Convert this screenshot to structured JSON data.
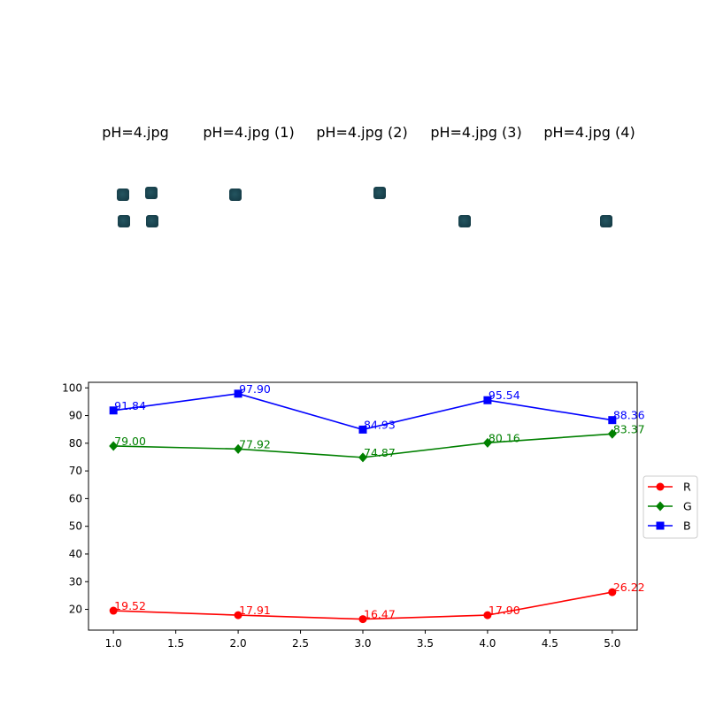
{
  "panels": [
    {
      "title": "pH=4.jpg",
      "spots": [
        [
          139,
          220
        ],
        [
          171,
          218
        ],
        [
          140,
          250
        ],
        [
          172,
          250
        ]
      ]
    },
    {
      "title": "pH=4.jpg (1)",
      "spots": [
        [
          266,
          220
        ]
      ]
    },
    {
      "title": "pH=4.jpg (2)",
      "spots": [
        [
          429,
          218
        ]
      ]
    },
    {
      "title": "pH=4.jpg (3)",
      "spots": [
        [
          525,
          250
        ]
      ]
    },
    {
      "title": "pH=4.jpg (4)",
      "spots": [
        [
          685,
          250
        ]
      ]
    }
  ],
  "chart_data": {
    "type": "line",
    "title": "",
    "xlabel": "",
    "ylabel": "",
    "x": [
      1.0,
      2.0,
      3.0,
      4.0,
      5.0
    ],
    "xlim": [
      0.8,
      5.2
    ],
    "ylim": [
      12.5,
      102
    ],
    "xticks": [
      "1.0",
      "1.5",
      "2.0",
      "2.5",
      "3.0",
      "3.5",
      "4.0",
      "4.5",
      "5.0"
    ],
    "yticks": [
      "20",
      "30",
      "40",
      "50",
      "60",
      "70",
      "80",
      "90",
      "100"
    ],
    "legend_position": "right",
    "series": [
      {
        "name": "R",
        "color": "#ff0000",
        "marker": "circle",
        "values": [
          19.52,
          17.91,
          16.47,
          17.9,
          26.22
        ],
        "labels": [
          "19.52",
          "17.91",
          "16.47",
          "17.90",
          "26.22"
        ]
      },
      {
        "name": "G",
        "color": "#008000",
        "marker": "diamond",
        "values": [
          79.0,
          77.92,
          74.87,
          80.16,
          83.37
        ],
        "labels": [
          "79.00",
          "77.92",
          "74.87",
          "80.16",
          "83.37"
        ]
      },
      {
        "name": "B",
        "color": "#0000ff",
        "marker": "square",
        "values": [
          91.84,
          97.9,
          84.93,
          95.54,
          88.36
        ],
        "labels": [
          "91.84",
          "97.90",
          "84.93",
          "95.54",
          "88.36"
        ]
      }
    ]
  }
}
